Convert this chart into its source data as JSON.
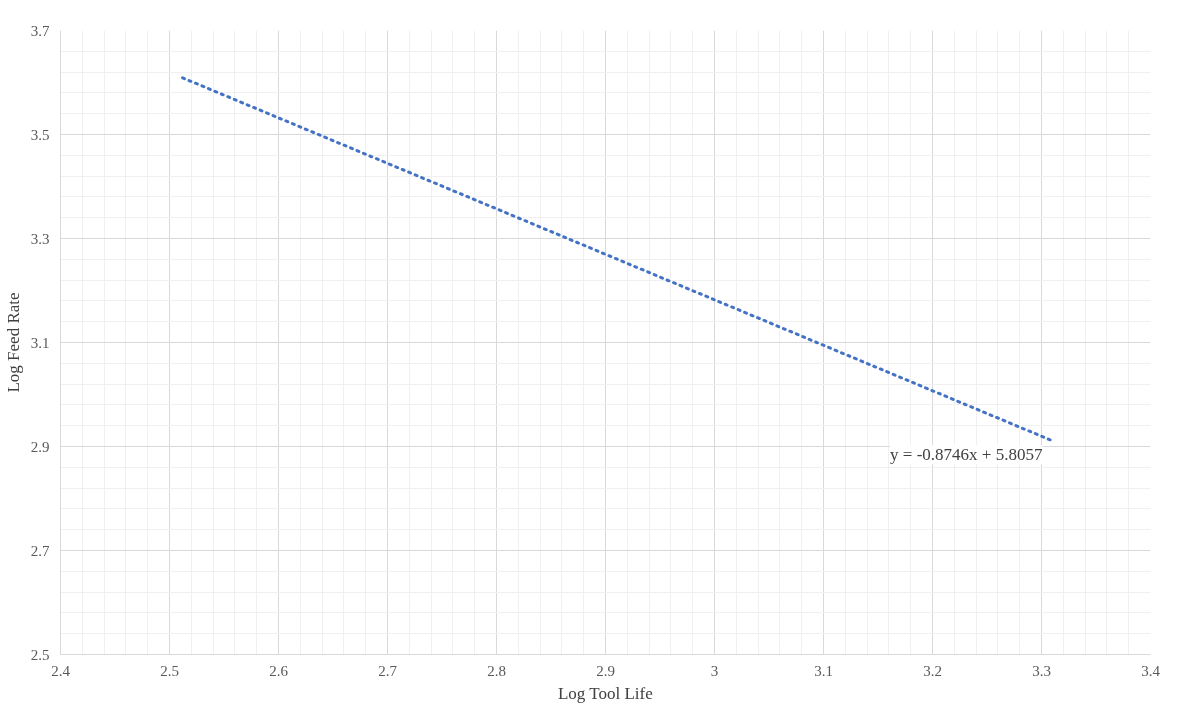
{
  "chart_data": {
    "type": "line",
    "xlabel": "Log Tool Life",
    "ylabel": "Log Feed Rate",
    "series": [
      {
        "color": "#4472c4",
        "x": [
          2.512,
          3.31
        ],
        "values": [
          3.609,
          2.911
        ]
      }
    ],
    "line_style": "dotted",
    "marker": "none",
    "grid": true,
    "xlim": [
      2.4,
      3.4
    ],
    "xticks": [
      2.4,
      2.5,
      2.6,
      2.7,
      2.8,
      2.9,
      {
        "value": 3.0,
        "label": "3"
      },
      3.1,
      3.2,
      3.3,
      3.4
    ],
    "ylim": [
      2.5,
      3.7
    ],
    "yticks": [
      2.5,
      2.7,
      2.9,
      3.1,
      3.3,
      3.5,
      3.7
    ],
    "annotations": [
      "y = -0.8746x + 5.8057"
    ]
  }
}
